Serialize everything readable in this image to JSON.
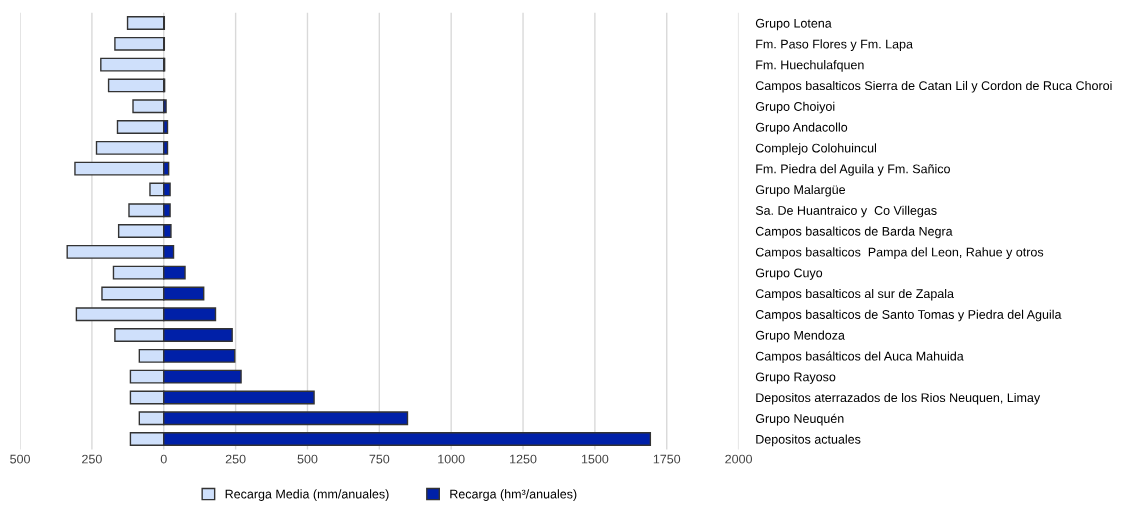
{
  "chart_data": {
    "type": "bar",
    "orientation": "horizontal",
    "categories": [
      "Grupo Lotena",
      "Fm. Paso Flores y Fm. Lapa",
      "Fm. Huechulafquen",
      "Campos basalticos Sierra de Catan Lil y Cordon de Ruca Choroi",
      "Grupo Choiyoi",
      "Grupo Andacollo",
      "Complejo Colohuincul",
      "Fm. Piedra del Aguila y Fm. Sañico",
      "Grupo Malargüe",
      "Sa. De Huantraico y  Co Villegas",
      "Campos basalticos de Barda Negra",
      "Campos basalticos  Pampa del Leon, Rahue y otros",
      "Grupo Cuyo",
      "Campos basalticos al sur de Zapala",
      "Campos basalticos de Santo Tomas y Piedra del Aguila",
      "Grupo Mendoza",
      "Campos basálticos del Auca Mahuida",
      "Grupo Rayoso",
      "Depositos aterrazados de los Rios Neuquen, Limay",
      "Grupo Neuquén",
      "Depositos actuales"
    ],
    "series": [
      {
        "name": "Recarga Media (mm/anuales)",
        "color": "#cfe0fb",
        "values": [
          -126,
          -170,
          -219,
          -192,
          -107,
          -161,
          -234,
          -309,
          -48,
          -121,
          -157,
          -336,
          -175,
          -215,
          -304,
          -170,
          -85,
          -116,
          -116,
          -85,
          -116
        ]
      },
      {
        "name": "Recarga (hm³/anuales)",
        "color": "#0020a8",
        "values": [
          2,
          2,
          3,
          3,
          8,
          13,
          13,
          17,
          22,
          22,
          25,
          34,
          74,
          139,
          180,
          238,
          247,
          269,
          523,
          848,
          1693
        ]
      }
    ],
    "xlim": [
      -500,
      2000
    ],
    "xticks": [
      {
        "value": -500,
        "label": "500"
      },
      {
        "value": -250,
        "label": "250"
      },
      0,
      250,
      500,
      750,
      1000,
      1250,
      1500,
      1750,
      2000
    ],
    "grid": "x",
    "legend": "bottom",
    "stacked": true
  }
}
